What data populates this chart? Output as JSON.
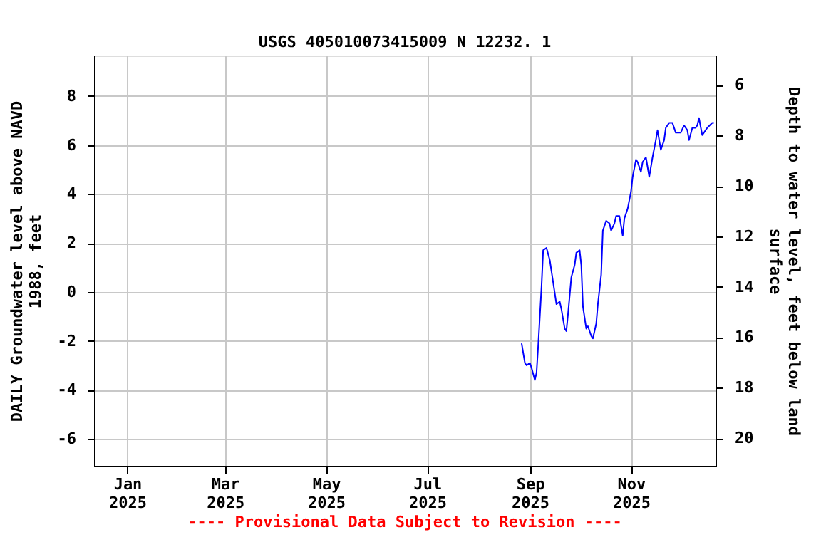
{
  "chart_data": {
    "type": "line",
    "title": "USGS 405010073415009 N 12232. 1",
    "ylabel": "DAILY Groundwater level above NAVD\n1988, feet",
    "y2label": "Depth to water level, feet below land\nsurface",
    "annotations": [
      "---- Provisional Data Subject to Revision ----"
    ],
    "x": [
      "2025-08-27",
      "2025-08-29",
      "2025-08-30",
      "2025-09-01",
      "2025-09-02",
      "2025-09-04",
      "2025-09-05",
      "2025-09-06",
      "2025-09-08",
      "2025-09-09",
      "2025-09-11",
      "2025-09-13",
      "2025-09-15",
      "2025-09-17",
      "2025-09-19",
      "2025-09-20",
      "2025-09-22",
      "2025-09-23",
      "2025-09-24",
      "2025-09-26",
      "2025-09-28",
      "2025-09-29",
      "2025-10-01",
      "2025-10-02",
      "2025-10-03",
      "2025-10-05",
      "2025-10-06",
      "2025-10-08",
      "2025-10-09",
      "2025-10-11",
      "2025-10-12",
      "2025-10-14",
      "2025-10-15",
      "2025-10-17",
      "2025-10-19",
      "2025-10-20",
      "2025-10-22",
      "2025-10-23",
      "2025-10-25",
      "2025-10-27",
      "2025-10-28",
      "2025-10-30",
      "2025-11-01",
      "2025-11-02",
      "2025-11-04",
      "2025-11-05",
      "2025-11-07",
      "2025-11-08",
      "2025-11-10",
      "2025-11-12",
      "2025-11-14",
      "2025-11-16",
      "2025-11-17",
      "2025-11-19",
      "2025-11-21",
      "2025-11-22",
      "2025-11-24",
      "2025-11-26",
      "2025-11-28",
      "2025-12-01",
      "2025-12-03",
      "2025-12-05",
      "2025-12-06",
      "2025-12-08",
      "2025-12-10",
      "2025-12-11",
      "2025-12-12",
      "2025-12-14",
      "2025-12-16",
      "2025-12-17",
      "2025-12-20",
      "2025-12-21"
    ],
    "series": [
      {
        "color": "#0000ff",
        "values": [
          -2.1,
          -2.9,
          -3.0,
          -2.9,
          -3.1,
          -3.6,
          -3.3,
          -2.2,
          0.2,
          1.7,
          1.8,
          1.3,
          0.4,
          -0.5,
          -0.4,
          -0.7,
          -1.5,
          -1.6,
          -0.9,
          0.6,
          1.1,
          1.6,
          1.7,
          1.1,
          -0.6,
          -1.5,
          -1.4,
          -1.8,
          -1.9,
          -1.3,
          -0.5,
          0.7,
          2.5,
          2.9,
          2.8,
          2.5,
          2.8,
          3.1,
          3.1,
          2.3,
          3.0,
          3.4,
          4.1,
          4.7,
          5.4,
          5.3,
          4.9,
          5.3,
          5.5,
          4.7,
          5.5,
          6.2,
          6.6,
          5.8,
          6.2,
          6.7,
          6.9,
          6.9,
          6.5,
          6.5,
          6.8,
          6.6,
          6.2,
          6.7,
          6.7,
          6.8,
          7.1,
          6.4,
          6.6,
          6.7,
          6.9,
          6.9
        ]
      }
    ],
    "xlim": [
      "2024-12-12",
      "2025-12-22"
    ],
    "xticks": [
      {
        "value": "2025-01-01",
        "label": "Jan\n2025"
      },
      {
        "value": "2025-03-01",
        "label": "Mar\n2025"
      },
      {
        "value": "2025-05-01",
        "label": "May\n2025"
      },
      {
        "value": "2025-07-01",
        "label": "Jul\n2025"
      },
      {
        "value": "2025-09-01",
        "label": "Sep\n2025"
      },
      {
        "value": "2025-11-01",
        "label": "Nov\n2025"
      }
    ],
    "ylim": [
      -7.1,
      9.65
    ],
    "yticks": [
      -6,
      -4,
      -2,
      0,
      2,
      4,
      6,
      8
    ],
    "y2lim": [
      21.1,
      4.83
    ],
    "y2ticks": [
      6,
      8,
      10,
      12,
      14,
      16,
      18,
      20
    ],
    "grid": true,
    "line_style": "solid",
    "marker": "none"
  }
}
